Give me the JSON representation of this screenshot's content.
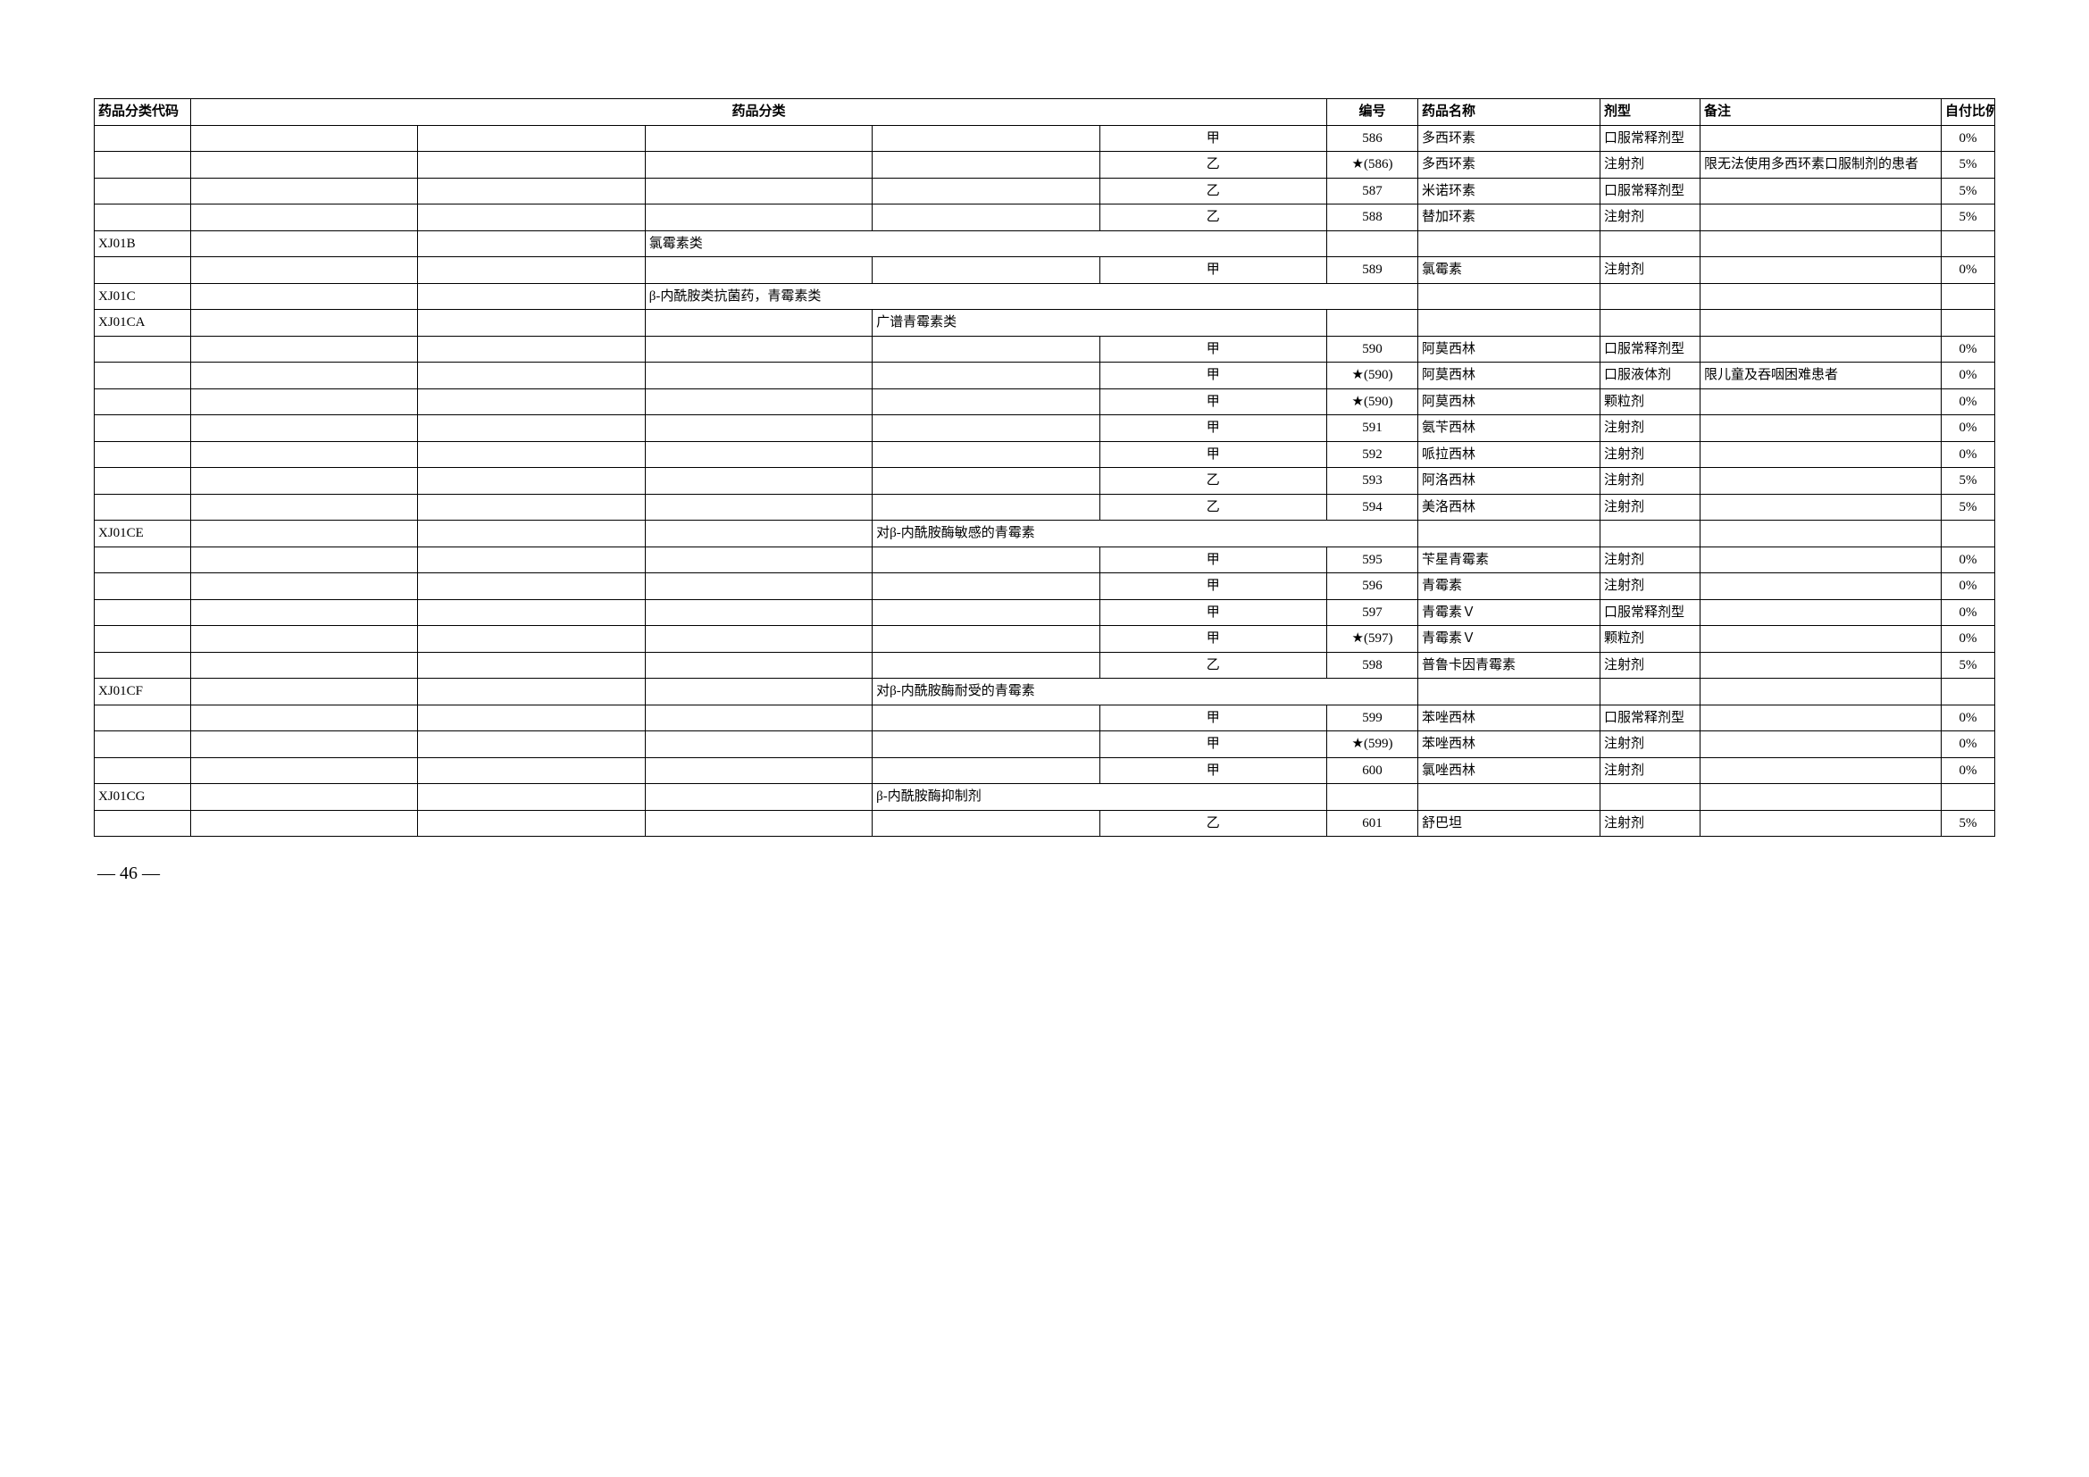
{
  "headers": {
    "code": "药品分类代码",
    "category": "药品分类",
    "num": "编号",
    "name": "药品名称",
    "form": "剂型",
    "note": "备注",
    "pay": "自付比例"
  },
  "rows": [
    {
      "code": "",
      "c1": "",
      "c2": "",
      "c3": "",
      "c4": "",
      "c5": "甲",
      "num": "586",
      "name": "多西环素",
      "form": "口服常释剂型",
      "note": "",
      "pay": "0%",
      "span": 0
    },
    {
      "code": "",
      "c1": "",
      "c2": "",
      "c3": "",
      "c4": "",
      "c5": "乙",
      "num": "★(586)",
      "name": "多西环素",
      "form": "注射剂",
      "note": "限无法使用多西环素口服制剂的患者",
      "pay": "5%",
      "span": 0
    },
    {
      "code": "",
      "c1": "",
      "c2": "",
      "c3": "",
      "c4": "",
      "c5": "乙",
      "num": "587",
      "name": "米诺环素",
      "form": "口服常释剂型",
      "note": "",
      "pay": "5%",
      "span": 0
    },
    {
      "code": "",
      "c1": "",
      "c2": "",
      "c3": "",
      "c4": "",
      "c5": "乙",
      "num": "588",
      "name": "替加环素",
      "form": "注射剂",
      "note": "",
      "pay": "5%",
      "span": 0
    },
    {
      "code": "XJ01B",
      "c1": "",
      "c2": "",
      "c3": "氯霉素类",
      "c4": "",
      "c5": "",
      "num": "",
      "name": "",
      "form": "",
      "note": "",
      "pay": "",
      "span": 3
    },
    {
      "code": "",
      "c1": "",
      "c2": "",
      "c3": "",
      "c4": "",
      "c5": "甲",
      "num": "589",
      "name": "氯霉素",
      "form": "注射剂",
      "note": "",
      "pay": "0%",
      "span": 0
    },
    {
      "code": "XJ01C",
      "c1": "",
      "c2": "",
      "c3": "β-内酰胺类抗菌药，青霉素类",
      "c4": "",
      "c5": "",
      "num": "",
      "name": "",
      "form": "",
      "note": "",
      "pay": "",
      "span": 3,
      "spanNum": true
    },
    {
      "code": "XJ01CA",
      "c1": "",
      "c2": "",
      "c3": "",
      "c4": "广谱青霉素类",
      "c5": "",
      "num": "",
      "name": "",
      "form": "",
      "note": "",
      "pay": "",
      "span": 4
    },
    {
      "code": "",
      "c1": "",
      "c2": "",
      "c3": "",
      "c4": "",
      "c5": "甲",
      "num": "590",
      "name": "阿莫西林",
      "form": "口服常释剂型",
      "note": "",
      "pay": "0%",
      "span": 0
    },
    {
      "code": "",
      "c1": "",
      "c2": "",
      "c3": "",
      "c4": "",
      "c5": "甲",
      "num": "★(590)",
      "name": "阿莫西林",
      "form": "口服液体剂",
      "note": "限儿童及吞咽困难患者",
      "pay": "0%",
      "span": 0
    },
    {
      "code": "",
      "c1": "",
      "c2": "",
      "c3": "",
      "c4": "",
      "c5": "甲",
      "num": "★(590)",
      "name": "阿莫西林",
      "form": "颗粒剂",
      "note": "",
      "pay": "0%",
      "span": 0
    },
    {
      "code": "",
      "c1": "",
      "c2": "",
      "c3": "",
      "c4": "",
      "c5": "甲",
      "num": "591",
      "name": "氨苄西林",
      "form": "注射剂",
      "note": "",
      "pay": "0%",
      "span": 0
    },
    {
      "code": "",
      "c1": "",
      "c2": "",
      "c3": "",
      "c4": "",
      "c5": "甲",
      "num": "592",
      "name": "哌拉西林",
      "form": "注射剂",
      "note": "",
      "pay": "0%",
      "span": 0
    },
    {
      "code": "",
      "c1": "",
      "c2": "",
      "c3": "",
      "c4": "",
      "c5": "乙",
      "num": "593",
      "name": "阿洛西林",
      "form": "注射剂",
      "note": "",
      "pay": "5%",
      "span": 0
    },
    {
      "code": "",
      "c1": "",
      "c2": "",
      "c3": "",
      "c4": "",
      "c5": "乙",
      "num": "594",
      "name": "美洛西林",
      "form": "注射剂",
      "note": "",
      "pay": "5%",
      "span": 0
    },
    {
      "code": "XJ01CE",
      "c1": "",
      "c2": "",
      "c3": "",
      "c4": "对β-内酰胺酶敏感的青霉素",
      "c5": "",
      "num": "",
      "name": "",
      "form": "",
      "note": "",
      "pay": "",
      "span": 4,
      "spanNum": true
    },
    {
      "code": "",
      "c1": "",
      "c2": "",
      "c3": "",
      "c4": "",
      "c5": "甲",
      "num": "595",
      "name": "苄星青霉素",
      "form": "注射剂",
      "note": "",
      "pay": "0%",
      "span": 0
    },
    {
      "code": "",
      "c1": "",
      "c2": "",
      "c3": "",
      "c4": "",
      "c5": "甲",
      "num": "596",
      "name": "青霉素",
      "form": "注射剂",
      "note": "",
      "pay": "0%",
      "span": 0
    },
    {
      "code": "",
      "c1": "",
      "c2": "",
      "c3": "",
      "c4": "",
      "c5": "甲",
      "num": "597",
      "name": "青霉素Ｖ",
      "form": "口服常释剂型",
      "note": "",
      "pay": "0%",
      "span": 0
    },
    {
      "code": "",
      "c1": "",
      "c2": "",
      "c3": "",
      "c4": "",
      "c5": "甲",
      "num": "★(597)",
      "name": "青霉素Ｖ",
      "form": "颗粒剂",
      "note": "",
      "pay": "0%",
      "span": 0
    },
    {
      "code": "",
      "c1": "",
      "c2": "",
      "c3": "",
      "c4": "",
      "c5": "乙",
      "num": "598",
      "name": "普鲁卡因青霉素",
      "form": "注射剂",
      "note": "",
      "pay": "5%",
      "span": 0
    },
    {
      "code": "XJ01CF",
      "c1": "",
      "c2": "",
      "c3": "",
      "c4": "对β-内酰胺酶耐受的青霉素",
      "c5": "",
      "num": "",
      "name": "",
      "form": "",
      "note": "",
      "pay": "",
      "span": 4,
      "spanNum": true
    },
    {
      "code": "",
      "c1": "",
      "c2": "",
      "c3": "",
      "c4": "",
      "c5": "甲",
      "num": "599",
      "name": "苯唑西林",
      "form": "口服常释剂型",
      "note": "",
      "pay": "0%",
      "span": 0
    },
    {
      "code": "",
      "c1": "",
      "c2": "",
      "c3": "",
      "c4": "",
      "c5": "甲",
      "num": "★(599)",
      "name": "苯唑西林",
      "form": "注射剂",
      "note": "",
      "pay": "0%",
      "span": 0
    },
    {
      "code": "",
      "c1": "",
      "c2": "",
      "c3": "",
      "c4": "",
      "c5": "甲",
      "num": "600",
      "name": "氯唑西林",
      "form": "注射剂",
      "note": "",
      "pay": "0%",
      "span": 0
    },
    {
      "code": "XJ01CG",
      "c1": "",
      "c2": "",
      "c3": "",
      "c4": "β-内酰胺酶抑制剂",
      "c5": "",
      "num": "",
      "name": "",
      "form": "",
      "note": "",
      "pay": "",
      "span": 4
    },
    {
      "code": "",
      "c1": "",
      "c2": "",
      "c3": "",
      "c4": "",
      "c5": "乙",
      "num": "601",
      "name": "舒巴坦",
      "form": "注射剂",
      "note": "",
      "pay": "5%",
      "span": 0
    }
  ],
  "pageNumber": "— 46 —"
}
